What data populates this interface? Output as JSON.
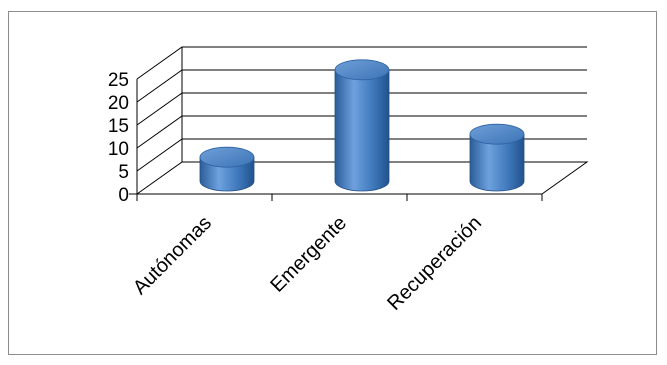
{
  "chart_data": {
    "type": "bar",
    "style": "3d-cylinder",
    "categories": [
      "Autónomas",
      "Emergente",
      "Recuperación"
    ],
    "values": [
      3,
      22,
      8
    ],
    "ylim": [
      0,
      25
    ],
    "yticks": [
      0,
      5,
      10,
      15,
      20,
      25
    ],
    "tick_labels": [
      "0",
      "5",
      "10",
      "15",
      "20",
      "25"
    ],
    "grid": true,
    "legend": "none",
    "bar_color": "#3a75b8"
  }
}
